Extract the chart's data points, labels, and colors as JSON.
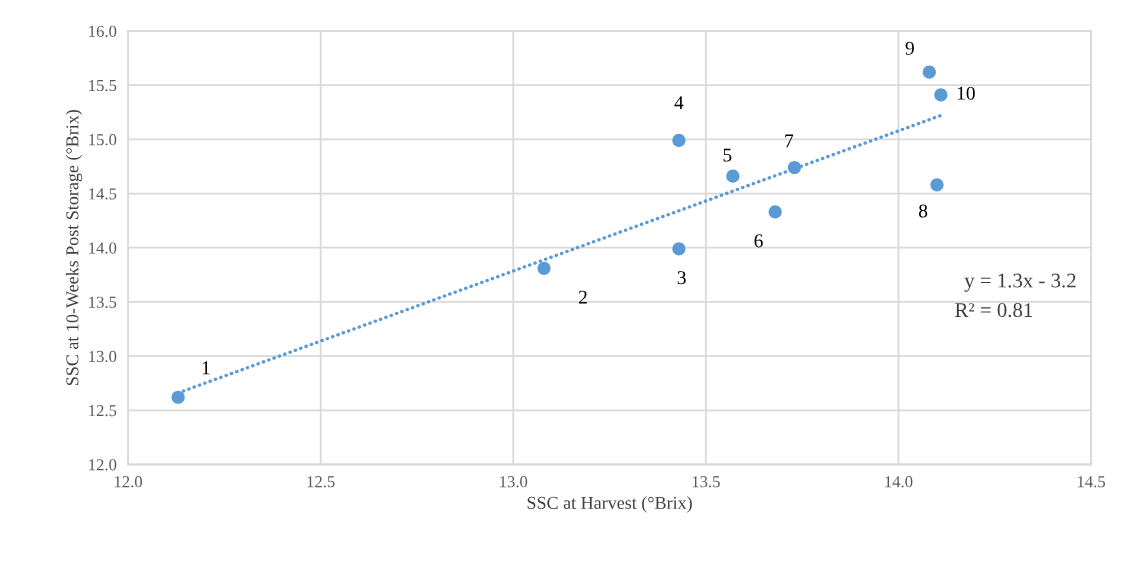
{
  "chart_data": {
    "type": "scatter",
    "xlabel": "SSC at Harvest (°Brix)",
    "ylabel": "SSC at 10-Weeks Post Storage (°Brix)",
    "xlim": [
      12.0,
      14.5
    ],
    "xticks": [
      {
        "value": 12.0,
        "label": "12.0"
      },
      {
        "value": 12.5,
        "label": "12.5"
      },
      {
        "value": 13.0,
        "label": "13.0"
      },
      {
        "value": 13.5,
        "label": "13.5"
      },
      {
        "value": 14.0,
        "label": "14.0"
      },
      {
        "value": 14.5,
        "label": "14.5"
      }
    ],
    "ylim": [
      12.0,
      16.0
    ],
    "yticks": [
      {
        "value": 12.0,
        "label": "12.0"
      },
      {
        "value": 12.5,
        "label": "12.5"
      },
      {
        "value": 13.0,
        "label": "13.0"
      },
      {
        "value": 13.5,
        "label": "13.5"
      },
      {
        "value": 14.0,
        "label": "14.0"
      },
      {
        "value": 14.5,
        "label": "14.5"
      },
      {
        "value": 15.0,
        "label": "15.0"
      },
      {
        "value": 15.5,
        "label": "15.5"
      },
      {
        "value": 16.0,
        "label": "16.0"
      }
    ],
    "grid": true,
    "series": [
      {
        "color": "#5b9bd5",
        "marker": "circle",
        "x": [
          12.13,
          13.08,
          13.43,
          13.43,
          13.57,
          13.68,
          13.73,
          14.1,
          14.08,
          14.11
        ],
        "values": [
          12.62,
          13.81,
          13.99,
          14.99,
          14.66,
          14.33,
          14.74,
          14.58,
          15.62,
          15.41
        ]
      },
      {
        "type": "line",
        "color": "#5b9bd5",
        "line_style": "dotted",
        "x": [
          12.13,
          14.11
        ],
        "values": [
          12.66,
          15.22
        ]
      }
    ],
    "annotations": [
      {
        "text": "1",
        "x": 12.13,
        "y": 12.62
      },
      {
        "text": "2",
        "x": 13.08,
        "y": 13.81
      },
      {
        "text": "3",
        "x": 13.43,
        "y": 13.99
      },
      {
        "text": "4",
        "x": 13.43,
        "y": 14.99
      },
      {
        "text": "5",
        "x": 13.57,
        "y": 14.66
      },
      {
        "text": "6",
        "x": 13.68,
        "y": 14.33
      },
      {
        "text": "7",
        "x": 13.73,
        "y": 14.74
      },
      {
        "text": "8",
        "x": 14.1,
        "y": 14.58
      },
      {
        "text": "9",
        "x": 14.08,
        "y": 15.62
      },
      {
        "text": "10",
        "x": 14.11,
        "y": 15.41
      },
      "y = 1.3x - 3.2",
      "R² = 0.81"
    ]
  }
}
